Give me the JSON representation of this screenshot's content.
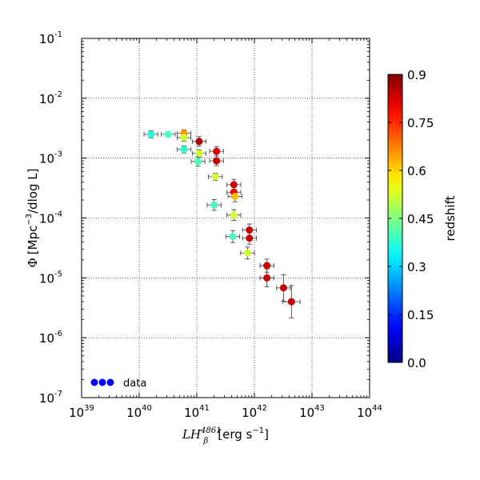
{
  "chart_data": {
    "type": "scatter",
    "title": "",
    "x_scale": "log",
    "y_scale": "log",
    "xlim": [
      1e+39,
      1e+44
    ],
    "ylim": [
      1e-07,
      0.1
    ],
    "grid": true,
    "x_ticks": [
      "10^39",
      "10^40",
      "10^41",
      "10^42",
      "10^43",
      "10^44"
    ],
    "y_ticks": [
      "10^-7",
      "10^-6",
      "10^-5",
      "10^-4",
      "10^-3",
      "10^-2",
      "10^-1"
    ],
    "xlabel": {
      "symbol": "LH",
      "sub": "β",
      "sup": "4861",
      "rest": "[erg s",
      "rest_sup": "−1",
      "rest_end": "]"
    },
    "ylabel": {
      "symbol": "Φ",
      "rest": "[Mpc",
      "rest_sup": "−3",
      "rest_end": "/dlog L]"
    },
    "legend": {
      "label": "data",
      "placement": "lower-left",
      "color": "#0000ff"
    },
    "colorbar": {
      "label": "redshift",
      "range": [
        0.0,
        0.9
      ],
      "ticks": [
        "0.0",
        "0.15",
        "0.3",
        "0.45",
        "0.6",
        "0.75",
        "0.9"
      ],
      "tick_values": [
        0.0,
        0.15,
        0.3,
        0.45,
        0.6,
        0.75,
        0.9
      ],
      "colormap": "jet"
    },
    "points": [
      {
        "x": 1.6e+40,
        "y": 0.0025,
        "z": 0.37,
        "xerr": 0.12,
        "yerr": 0.06
      },
      {
        "x": 3.2e+40,
        "y": 0.0025,
        "z": 0.4,
        "xerr": 0.12,
        "yerr": 0.04
      },
      {
        "x": 6e+40,
        "y": 0.0026,
        "z": 0.65,
        "xerr": 0.12,
        "yerr": 0.06
      },
      {
        "x": 6e+40,
        "y": 0.0022,
        "z": 0.52,
        "xerr": 0.12,
        "yerr": 0.06
      },
      {
        "x": 6e+40,
        "y": 0.0014,
        "z": 0.38,
        "xerr": 0.12,
        "yerr": 0.06
      },
      {
        "x": 1.1e+41,
        "y": 0.0019,
        "z": 0.86,
        "xerr": 0.12,
        "yerr": 0.08
      },
      {
        "x": 1.1e+41,
        "y": 0.0012,
        "z": 0.52,
        "xerr": 0.12,
        "yerr": 0.06
      },
      {
        "x": 1.05e+41,
        "y": 0.00088,
        "z": 0.4,
        "xerr": 0.12,
        "yerr": 0.08
      },
      {
        "x": 2.2e+41,
        "y": 0.0013,
        "z": 0.82,
        "xerr": 0.12,
        "yerr": 0.08
      },
      {
        "x": 2.2e+41,
        "y": 0.0009,
        "z": 0.84,
        "xerr": 0.12,
        "yerr": 0.08
      },
      {
        "x": 2.1e+41,
        "y": 0.00049,
        "z": 0.52,
        "xerr": 0.12,
        "yerr": 0.06
      },
      {
        "x": 4.4e+41,
        "y": 0.00036,
        "z": 0.83,
        "xerr": 0.12,
        "yerr": 0.09
      },
      {
        "x": 4.4e+41,
        "y": 0.00027,
        "z": 0.8,
        "xerr": 0.12,
        "yerr": 0.09
      },
      {
        "x": 4.6e+41,
        "y": 0.00023,
        "z": 0.62,
        "xerr": 0.12,
        "yerr": 0.09
      },
      {
        "x": 2e+41,
        "y": 0.000165,
        "z": 0.4,
        "xerr": 0.12,
        "yerr": 0.09
      },
      {
        "x": 4.4e+41,
        "y": 0.000112,
        "z": 0.52,
        "xerr": 0.12,
        "yerr": 0.09
      },
      {
        "x": 8.2e+41,
        "y": 6.3e-05,
        "z": 0.84,
        "xerr": 0.12,
        "yerr": 0.1
      },
      {
        "x": 8.2e+41,
        "y": 4.6e-05,
        "z": 0.84,
        "xerr": 0.12,
        "yerr": 0.1
      },
      {
        "x": 4.2e+41,
        "y": 4.9e-05,
        "z": 0.4,
        "xerr": 0.12,
        "yerr": 0.1
      },
      {
        "x": 7.6e+41,
        "y": 2.6e-05,
        "z": 0.52,
        "xerr": 0.12,
        "yerr": 0.1
      },
      {
        "x": 1.65e+42,
        "y": 1.6e-05,
        "z": 0.84,
        "xerr": 0.12,
        "yerr": 0.11
      },
      {
        "x": 1.65e+42,
        "y": 1e-05,
        "z": 0.84,
        "xerr": 0.12,
        "yerr": 0.15
      },
      {
        "x": 3.2e+42,
        "y": 6.8e-06,
        "z": 0.84,
        "xerr": 0.12,
        "yerr": 0.22
      },
      {
        "x": 4.4e+42,
        "y": 4e-06,
        "z": 0.84,
        "xerr": 0.15,
        "yerr": 0.27
      }
    ]
  }
}
